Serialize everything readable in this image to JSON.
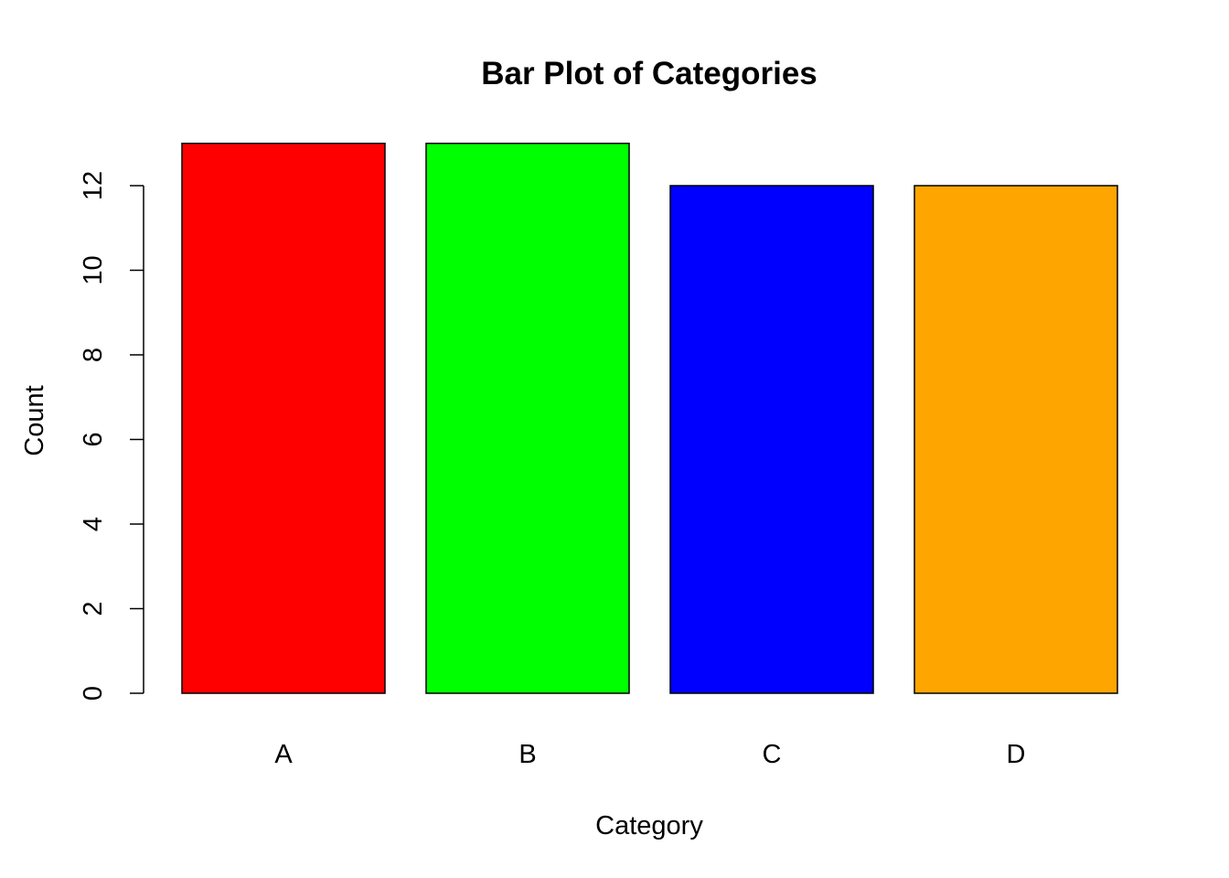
{
  "chart_data": {
    "type": "bar",
    "title": "Bar Plot of Categories",
    "xlabel": "Category",
    "ylabel": "Count",
    "categories": [
      "A",
      "B",
      "C",
      "D"
    ],
    "values": [
      13,
      13,
      12,
      12
    ],
    "colors": [
      "#ff0000",
      "#00ff00",
      "#0000ff",
      "#ffa500"
    ],
    "ylim": [
      0,
      13
    ],
    "yticks": [
      0,
      2,
      4,
      6,
      8,
      10,
      12
    ],
    "ytick_labels": [
      "0",
      "2",
      "4",
      "6",
      "8",
      "10",
      "12"
    ],
    "grid": false,
    "legend": "none"
  }
}
